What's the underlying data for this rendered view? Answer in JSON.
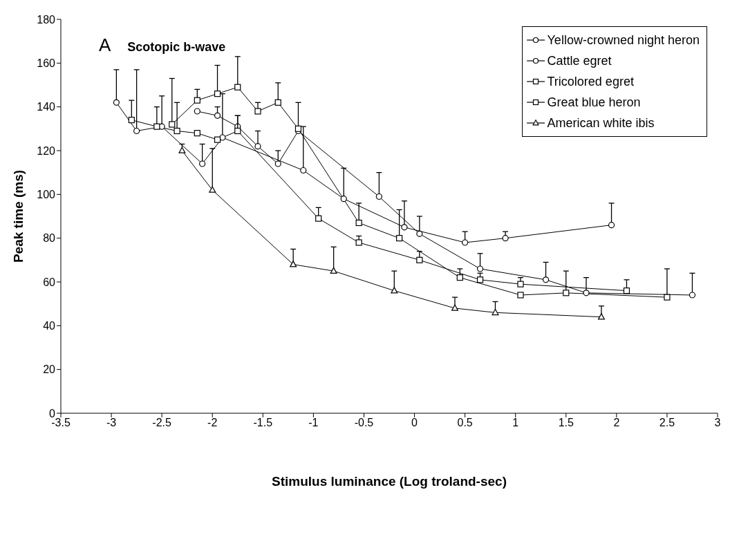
{
  "chart_data": {
    "type": "line",
    "title": "Scotopic b-wave",
    "annotations": [
      "A"
    ],
    "xlabel": "Stimulus luminance (Log troland-sec)",
    "ylabel": "Peak time (ms)",
    "xlim": [
      -3.5,
      3
    ],
    "xticks": [
      -3.5,
      -3,
      -2.5,
      -2,
      -1.5,
      -1,
      -0.5,
      0,
      0.5,
      1,
      1.5,
      2,
      2.5,
      3
    ],
    "ylim": [
      0,
      180
    ],
    "yticks": [
      0,
      20,
      40,
      60,
      80,
      100,
      120,
      140,
      160,
      180
    ],
    "grid": false,
    "legend": "top right",
    "line_style": "solid",
    "series": [
      {
        "name": "Yellow-crowned night heron",
        "color": "#000000",
        "marker": "circle",
        "x": [
          -2.15,
          -1.95,
          -1.75,
          -1.55,
          -1.35,
          -1.15,
          -0.35,
          0.05,
          0.65,
          1.3,
          1.7,
          2.75
        ],
        "values": [
          138,
          136,
          131,
          122,
          114,
          129,
          99,
          82,
          66,
          61,
          55,
          54
        ],
        "errors": [
          null,
          [
            136,
            140
          ],
          [
            131,
            136
          ],
          [
            122,
            129
          ],
          [
            114,
            120
          ],
          null,
          [
            99,
            110
          ],
          [
            82,
            90
          ],
          [
            66,
            73
          ],
          [
            61,
            69
          ],
          [
            55,
            62
          ],
          [
            54,
            64
          ]
        ]
      },
      {
        "name": "Cattle egret",
        "color": "#000000",
        "marker": "circle",
        "x": [
          -2.95,
          -2.75,
          -2.5,
          -2.1,
          -1.9,
          -1.1,
          -0.7,
          -0.1,
          0.5,
          0.9,
          1.95
        ],
        "values": [
          142,
          129,
          131,
          114,
          126,
          111,
          98,
          85,
          78,
          80,
          86
        ],
        "errors": [
          [
            142,
            157
          ],
          [
            129,
            157
          ],
          [
            131,
            145
          ],
          [
            114,
            123
          ],
          [
            126,
            146
          ],
          [
            111,
            131
          ],
          [
            98,
            112
          ],
          [
            85,
            97
          ],
          [
            78,
            83
          ],
          [
            80,
            83
          ],
          [
            86,
            96
          ]
        ]
      },
      {
        "name": "Tricolored egret",
        "color": "#000000",
        "marker": "square",
        "x": [
          -2.8,
          -2.55,
          -2.35,
          -2.15,
          -1.95,
          -1.75,
          -0.95,
          -0.55,
          0.05,
          0.65,
          1.05,
          2.1
        ],
        "values": [
          134,
          131,
          129,
          128,
          125,
          129,
          89,
          78,
          70,
          61,
          59,
          56
        ],
        "errors": [
          [
            134,
            143
          ],
          [
            131,
            140
          ],
          [
            129,
            142
          ],
          null,
          null,
          [
            129,
            136
          ],
          [
            89,
            94
          ],
          [
            78,
            81
          ],
          [
            70,
            74
          ],
          [
            61,
            64
          ],
          [
            59,
            62
          ],
          [
            56,
            61
          ]
        ]
      },
      {
        "name": "Great blue heron",
        "color": "#000000",
        "marker": "square",
        "x": [
          -2.4,
          -2.15,
          -1.95,
          -1.75,
          -1.55,
          -1.35,
          -1.15,
          -0.55,
          -0.15,
          0.45,
          1.05,
          1.5,
          2.5
        ],
        "values": [
          132,
          143,
          146,
          149,
          138,
          142,
          130,
          87,
          80,
          62,
          54,
          55,
          53
        ],
        "errors": [
          [
            132,
            153
          ],
          [
            143,
            148
          ],
          [
            146,
            159
          ],
          [
            149,
            163
          ],
          [
            138,
            142
          ],
          [
            142,
            151
          ],
          [
            130,
            142
          ],
          [
            87,
            96
          ],
          [
            80,
            93
          ],
          [
            62,
            66
          ],
          null,
          [
            55,
            65
          ],
          [
            53,
            66
          ]
        ]
      },
      {
        "name": "American white ibis",
        "color": "#000000",
        "marker": "triangle",
        "x": [
          -2.3,
          -2.0,
          -1.2,
          -0.8,
          -0.2,
          0.4,
          0.8,
          1.85
        ],
        "values": [
          120,
          102,
          68,
          65,
          56,
          48,
          46,
          44
        ],
        "errors": [
          [
            120,
            123
          ],
          [
            102,
            121
          ],
          [
            68,
            75
          ],
          [
            65,
            76
          ],
          [
            56,
            65
          ],
          [
            48,
            53
          ],
          [
            46,
            51
          ],
          [
            44,
            49
          ]
        ]
      }
    ]
  }
}
